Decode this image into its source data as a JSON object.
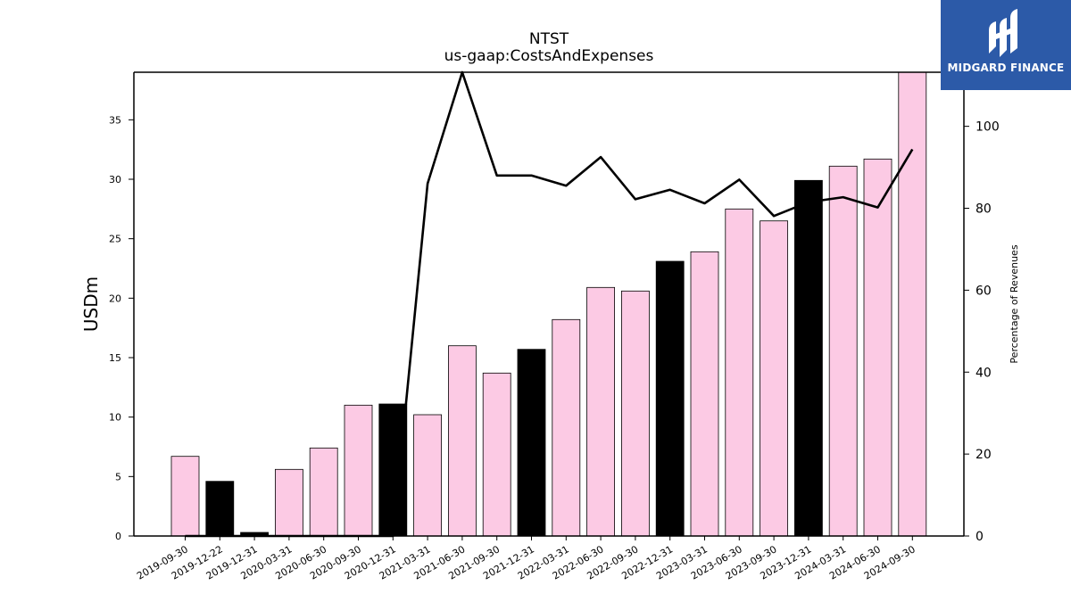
{
  "chart_data": {
    "type": "bar",
    "title": "NTST",
    "subtitle": "us-gaap:CostsAndExpenses",
    "ylabel": "USDm",
    "y2label": "Percentage of Revenues",
    "ylim": [
      0,
      39
    ],
    "y2lim": [
      0,
      113.2
    ],
    "yticks": [
      0,
      5,
      10,
      15,
      20,
      25,
      30,
      35
    ],
    "y2ticks": [
      0,
      20,
      40,
      60,
      80,
      100
    ],
    "categories": [
      "2019-09-30",
      "2019-12-22",
      "2019-12-31",
      "2020-03-31",
      "2020-06-30",
      "2020-09-30",
      "2020-12-31",
      "2021-03-31",
      "2021-06-30",
      "2021-09-30",
      "2021-12-31",
      "2022-03-31",
      "2022-06-30",
      "2022-09-30",
      "2022-12-31",
      "2023-03-31",
      "2023-06-30",
      "2023-09-30",
      "2023-12-31",
      "2024-03-31",
      "2024-06-30",
      "2024-09-30"
    ],
    "series": [
      {
        "type": "bar",
        "axis": "left",
        "values": [
          6.7,
          4.6,
          0.3,
          5.6,
          7.4,
          11.0,
          11.1,
          10.2,
          16.0,
          13.7,
          15.7,
          18.2,
          20.9,
          20.6,
          23.1,
          23.9,
          27.5,
          26.5,
          29.9,
          31.1,
          31.7,
          39.0
        ],
        "colors": [
          "#fccae4",
          "#000000",
          "#000000",
          "#fccae4",
          "#fccae4",
          "#fccae4",
          "#000000",
          "#fccae4",
          "#fccae4",
          "#fccae4",
          "#000000",
          "#fccae4",
          "#fccae4",
          "#fccae4",
          "#000000",
          "#fccae4",
          "#fccae4",
          "#fccae4",
          "#000000",
          "#fccae4",
          "#fccae4",
          "#fccae4"
        ]
      },
      {
        "type": "line",
        "axis": "right",
        "color": "#000000",
        "values": [
          0,
          0,
          0,
          0,
          0,
          0,
          0,
          86,
          113.2,
          88,
          88,
          85.5,
          92.5,
          82.2,
          84.5,
          81.2,
          87,
          78.1,
          81.5,
          82.7,
          80.2,
          94.4
        ]
      }
    ]
  },
  "logo": {
    "text": "MIDGARD FINANCE"
  },
  "colors": {
    "bar_light": "#fccae4",
    "bar_dark": "#000000",
    "logo_bg": "#2c5aa8"
  }
}
